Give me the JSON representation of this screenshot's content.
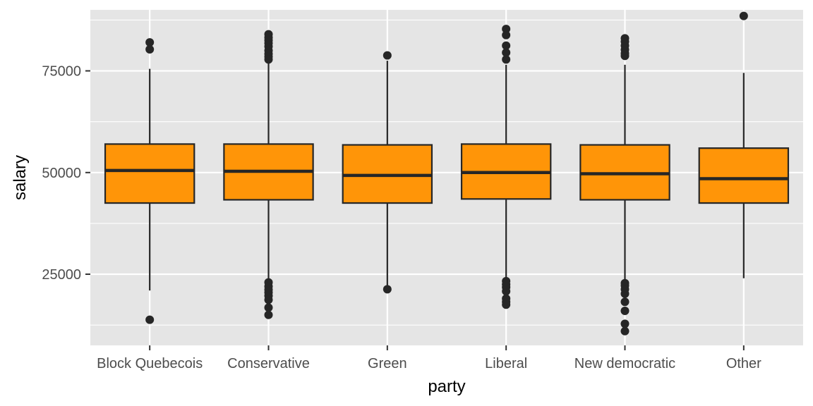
{
  "chart_data": {
    "type": "boxplot",
    "xlabel": "party",
    "ylabel": "salary",
    "ylim": [
      7500,
      90000
    ],
    "y_ticks": [
      25000,
      50000,
      75000
    ],
    "y_tick_labels": [
      "25000",
      "50000",
      "75000"
    ],
    "grid": true,
    "colors": {
      "panel": "#e5e5e5",
      "grid": "#ffffff",
      "box_fill": "#ff9508",
      "box_line": "#262626",
      "tick_text": "#4d4d4d"
    },
    "categories": [
      "Block Quebecois",
      "Conservative",
      "Green",
      "Liberal",
      "New democratic",
      "Other"
    ],
    "boxes": [
      {
        "category": "Block Quebecois",
        "lower_whisker": 21000,
        "q1": 42500,
        "median": 50500,
        "q3": 57000,
        "upper_whisker": 75500,
        "outliers": [
          82000,
          80300,
          13800
        ]
      },
      {
        "category": "Conservative",
        "lower_whisker": 23500,
        "q1": 43300,
        "median": 50300,
        "q3": 57000,
        "upper_whisker": 77000,
        "outliers": [
          84000,
          83200,
          82500,
          81800,
          81000,
          80000,
          79200,
          78500,
          77800,
          23000,
          22000,
          21200,
          20500,
          19700,
          18700,
          16800,
          15000
        ]
      },
      {
        "category": "Green",
        "lower_whisker": 22000,
        "q1": 42500,
        "median": 49300,
        "q3": 56800,
        "upper_whisker": 77500,
        "outliers": [
          78800,
          21300
        ]
      },
      {
        "category": "Liberal",
        "lower_whisker": 24000,
        "q1": 43500,
        "median": 50000,
        "q3": 57000,
        "upper_whisker": 76500,
        "outliers": [
          85300,
          83800,
          81200,
          79500,
          77800,
          23300,
          22500,
          21800,
          20800,
          19000,
          18200,
          17500
        ]
      },
      {
        "category": "New democratic",
        "lower_whisker": 23000,
        "q1": 43300,
        "median": 49700,
        "q3": 56800,
        "upper_whisker": 76500,
        "outliers": [
          83000,
          82200,
          81200,
          80200,
          79300,
          78700,
          22800,
          22200,
          21300,
          20200,
          18200,
          16000,
          12800,
          11000
        ]
      },
      {
        "category": "Other",
        "lower_whisker": 24000,
        "q1": 42500,
        "median": 48500,
        "q3": 56000,
        "upper_whisker": 74500,
        "outliers": [
          88500
        ]
      }
    ]
  }
}
